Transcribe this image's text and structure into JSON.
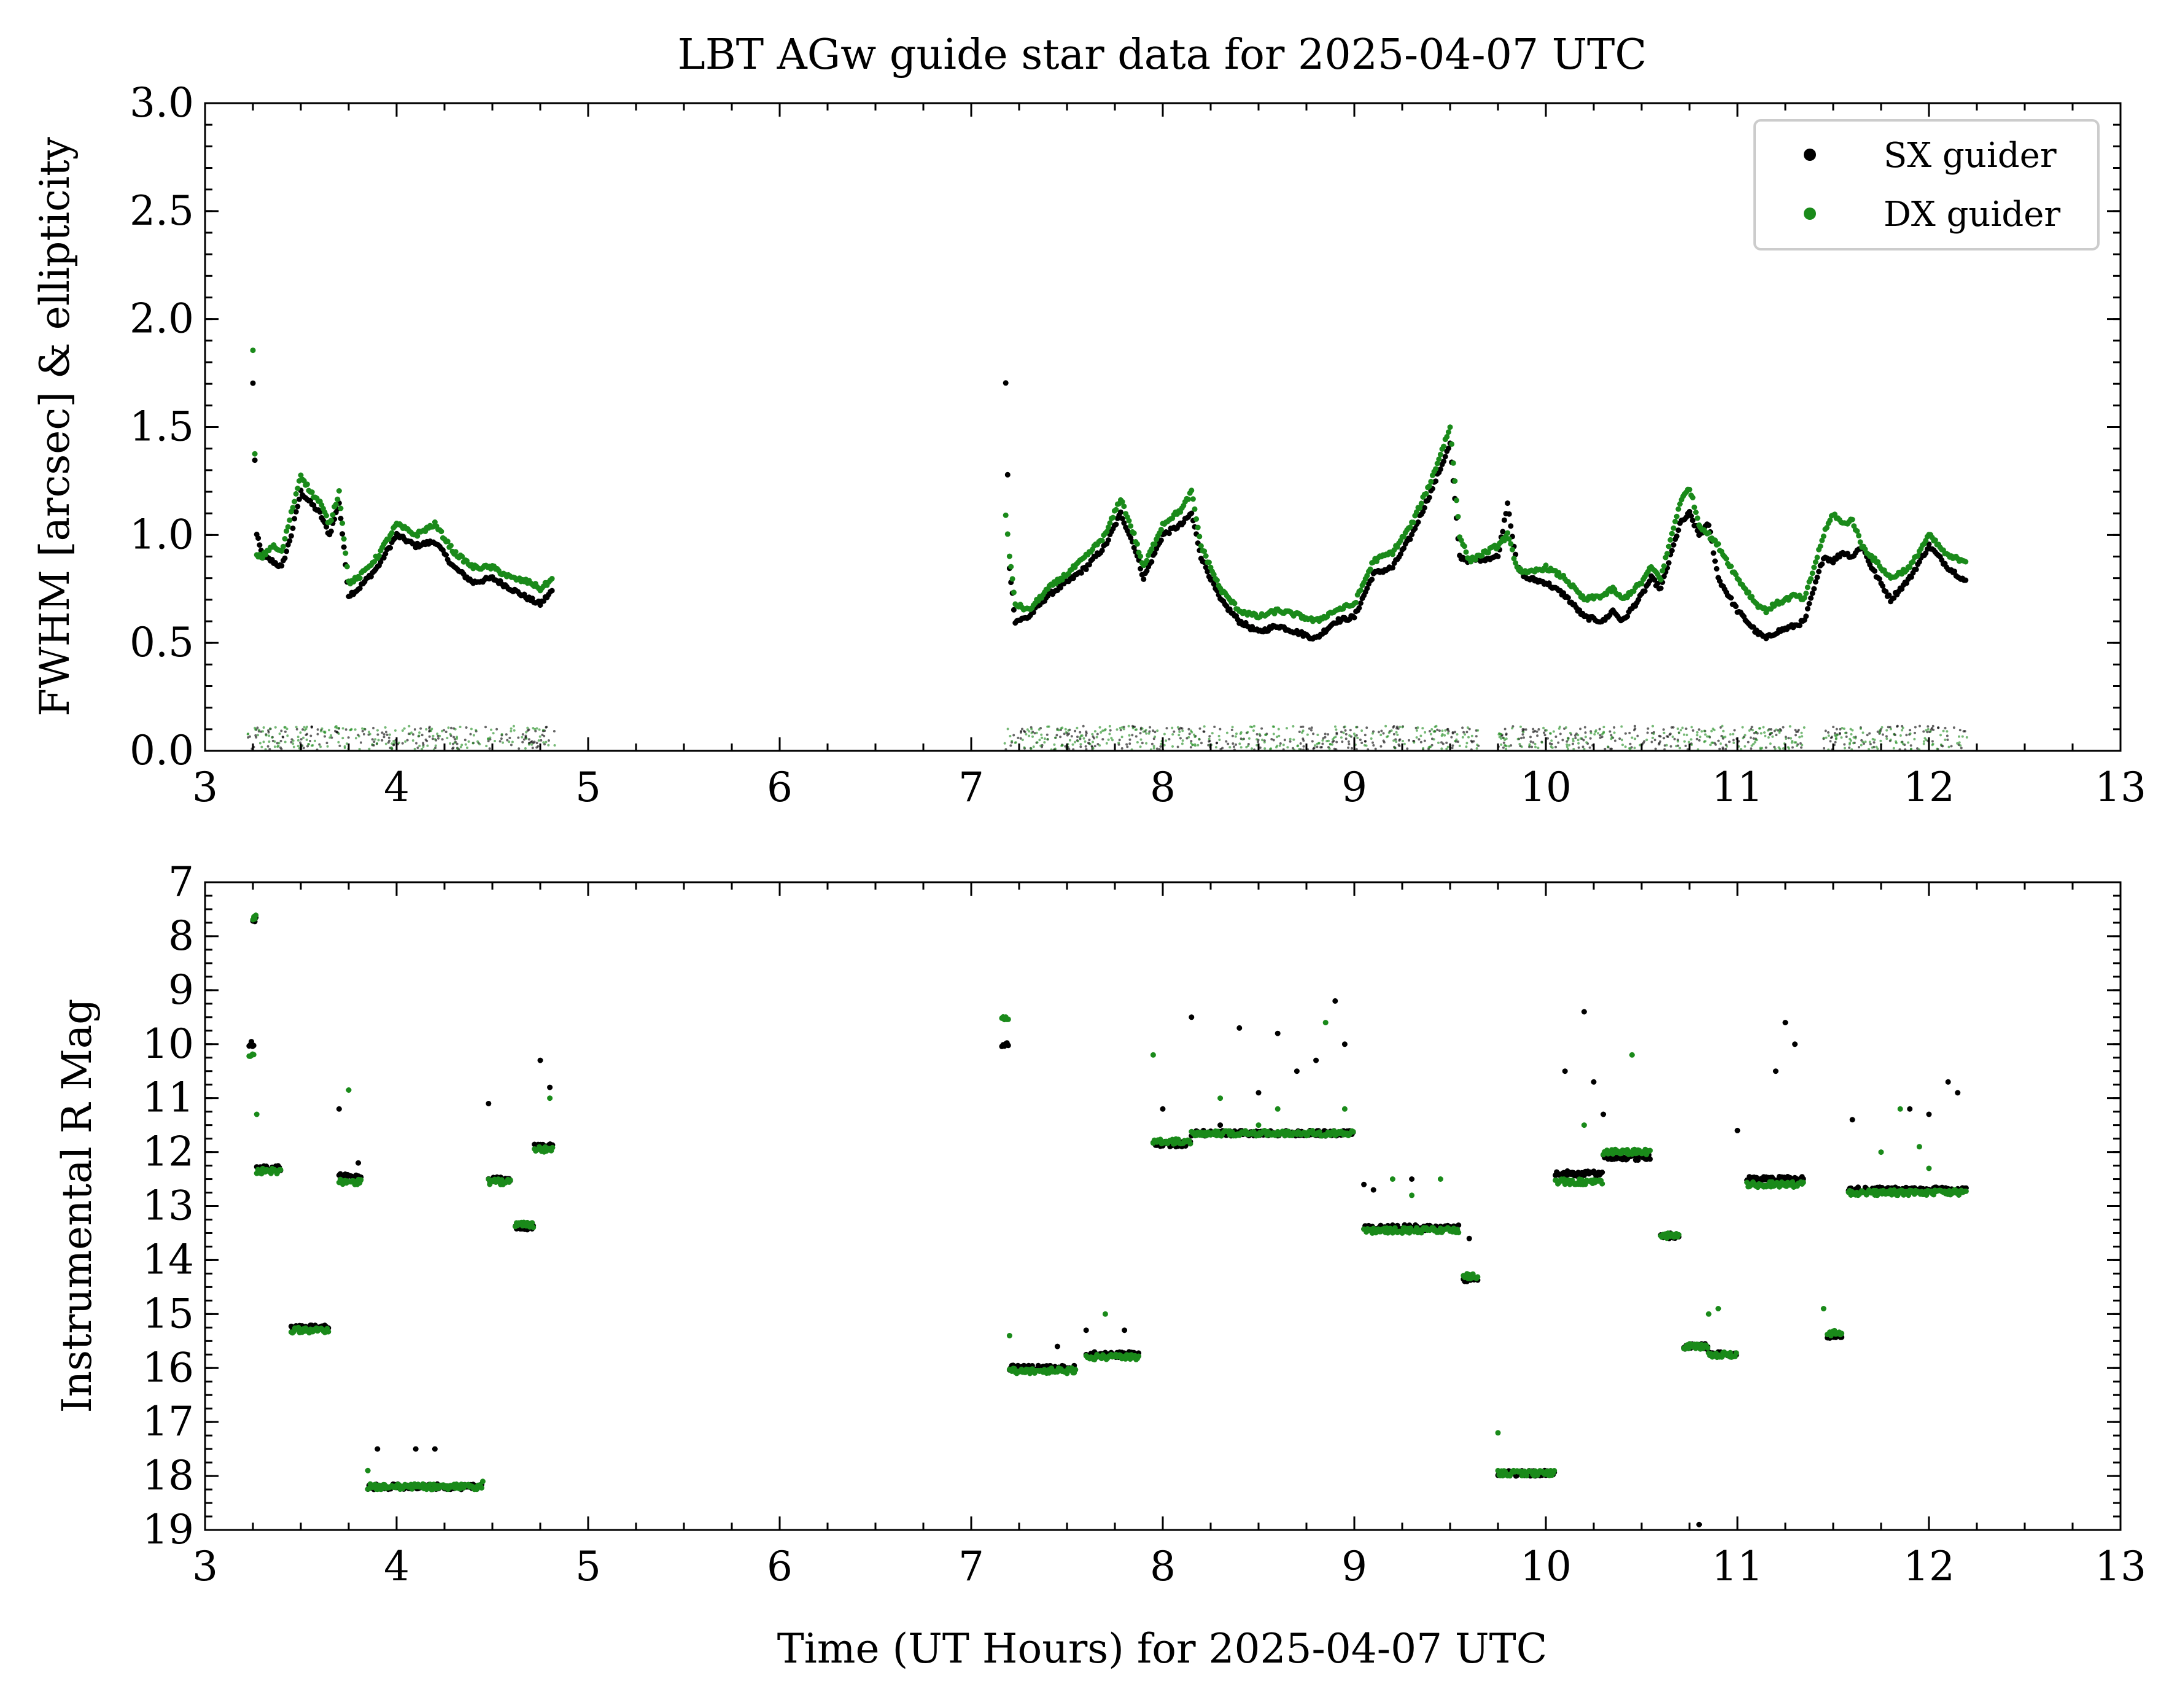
{
  "figure_title": "LBT AGw guide star data for 2025-04-07 UTC",
  "xlabel": "Time (UT Hours) for 2025-04-07 UTC",
  "colors": {
    "sx": "#000000",
    "dx": "#1a8a1a",
    "axis": "#000000",
    "background": "#ffffff"
  },
  "legend": {
    "sx_label": "SX guider",
    "dx_label": "DX guider",
    "placement": "top-right"
  },
  "top_xticks": [
    "3",
    "4",
    "5",
    "6",
    "7",
    "8",
    "9",
    "10",
    "11",
    "12",
    "13"
  ],
  "top_yticks": [
    "0.0",
    "0.5",
    "1.0",
    "1.5",
    "2.0",
    "2.5",
    "3.0"
  ],
  "bottom_xticks": [
    "3",
    "4",
    "5",
    "6",
    "7",
    "8",
    "9",
    "10",
    "11",
    "12",
    "13"
  ],
  "bottom_yticks": [
    "7",
    "8",
    "9",
    "10",
    "11",
    "12",
    "13",
    "14",
    "15",
    "16",
    "17",
    "18",
    "19"
  ],
  "chart_data": [
    {
      "type": "scatter",
      "title": "LBT AGw guide star data for 2025-04-07 UTC",
      "xlabel": "",
      "ylabel": "FWHM [arcsec] & ellipticity",
      "xlim": [
        3,
        13
      ],
      "ylim": [
        0,
        3
      ],
      "grid": false,
      "legend_placement": "top-right",
      "series": [
        {
          "name": "SX guider",
          "x": [
            3.25,
            3.27,
            3.3,
            3.35,
            3.4,
            3.45,
            3.5,
            3.55,
            3.6,
            3.65,
            3.7,
            3.75,
            3.8,
            3.9,
            4.0,
            4.1,
            4.2,
            4.3,
            4.4,
            4.5,
            4.6,
            4.7,
            4.75,
            4.82,
            7.18,
            7.2,
            7.23,
            7.3,
            7.4,
            7.5,
            7.6,
            7.7,
            7.78,
            7.85,
            7.9,
            8.0,
            8.1,
            8.15,
            8.2,
            8.3,
            8.4,
            8.5,
            8.6,
            8.7,
            8.8,
            8.9,
            9.0,
            9.1,
            9.2,
            9.3,
            9.4,
            9.5,
            9.55,
            9.6,
            9.75,
            9.8,
            9.85,
            9.9,
            10.0,
            10.1,
            10.2,
            10.3,
            10.35,
            10.4,
            10.5,
            10.55,
            10.6,
            10.7,
            10.75,
            10.8,
            10.85,
            10.9,
            11.0,
            11.1,
            11.15,
            11.2,
            11.3,
            11.35,
            11.45,
            11.5,
            11.55,
            11.6,
            11.65,
            11.7,
            11.8,
            11.9,
            12.0,
            12.1,
            12.2
          ],
          "y": [
            1.7,
            1.0,
            0.9,
            0.88,
            0.85,
            1.0,
            1.2,
            1.15,
            1.1,
            1.0,
            1.15,
            0.72,
            0.75,
            0.85,
            1.0,
            0.95,
            0.97,
            0.85,
            0.78,
            0.8,
            0.75,
            0.7,
            0.68,
            0.75,
            1.7,
            0.85,
            0.6,
            0.62,
            0.72,
            0.78,
            0.85,
            0.95,
            1.1,
            0.95,
            0.8,
            1.0,
            1.05,
            1.1,
            0.9,
            0.7,
            0.6,
            0.55,
            0.58,
            0.55,
            0.52,
            0.6,
            0.62,
            0.82,
            0.85,
            1.0,
            1.2,
            1.42,
            0.9,
            0.88,
            0.9,
            1.15,
            0.85,
            0.8,
            0.78,
            0.72,
            0.62,
            0.6,
            0.65,
            0.6,
            0.72,
            0.8,
            0.75,
            1.05,
            1.1,
            1.0,
            1.05,
            0.8,
            0.65,
            0.55,
            0.52,
            0.55,
            0.58,
            0.6,
            0.9,
            0.88,
            0.92,
            0.9,
            0.95,
            0.85,
            0.7,
            0.8,
            0.95,
            0.85,
            0.78
          ],
          "note_y_secondary": [
            0.02,
            0.05,
            0.03,
            0.04,
            0.05,
            0.03,
            0.04,
            0.05,
            0.04,
            0.05,
            0.04,
            0.03,
            0.05,
            0.04,
            0.05,
            0.04,
            0.03,
            0.05,
            0.04,
            0.03
          ]
        },
        {
          "name": "DX guider",
          "x": [
            3.25,
            3.27,
            3.3,
            3.35,
            3.4,
            3.45,
            3.5,
            3.55,
            3.6,
            3.65,
            3.7,
            3.75,
            3.8,
            3.9,
            4.0,
            4.1,
            4.2,
            4.3,
            4.4,
            4.5,
            4.6,
            4.7,
            4.75,
            4.82,
            7.18,
            7.2,
            7.23,
            7.3,
            7.4,
            7.5,
            7.6,
            7.7,
            7.78,
            7.85,
            7.9,
            8.0,
            8.1,
            8.15,
            8.2,
            8.3,
            8.4,
            8.5,
            8.6,
            8.7,
            8.8,
            8.9,
            9.0,
            9.1,
            9.2,
            9.3,
            9.4,
            9.5,
            9.55,
            9.6,
            9.75,
            9.8,
            9.85,
            9.9,
            10.0,
            10.1,
            10.2,
            10.3,
            10.35,
            10.4,
            10.5,
            10.55,
            10.6,
            10.7,
            10.75,
            10.8,
            10.85,
            10.9,
            11.0,
            11.1,
            11.15,
            11.2,
            11.3,
            11.35,
            11.45,
            11.5,
            11.55,
            11.6,
            11.65,
            11.7,
            11.8,
            11.9,
            12.0,
            12.1,
            12.2
          ],
          "y": [
            1.85,
            0.9,
            0.9,
            0.95,
            0.92,
            1.1,
            1.28,
            1.2,
            1.15,
            1.05,
            1.2,
            0.78,
            0.8,
            0.9,
            1.05,
            1.0,
            1.05,
            0.92,
            0.85,
            0.85,
            0.8,
            0.78,
            0.75,
            0.8,
            1.1,
            0.9,
            0.68,
            0.65,
            0.75,
            0.82,
            0.9,
            1.0,
            1.17,
            1.0,
            0.85,
            1.05,
            1.12,
            1.2,
            0.95,
            0.75,
            0.65,
            0.62,
            0.65,
            0.63,
            0.6,
            0.65,
            0.68,
            0.88,
            0.92,
            1.05,
            1.25,
            1.5,
            1.0,
            0.88,
            0.95,
            1.0,
            0.85,
            0.82,
            0.85,
            0.8,
            0.7,
            0.72,
            0.75,
            0.7,
            0.78,
            0.85,
            0.8,
            1.15,
            1.22,
            1.05,
            1.0,
            0.95,
            0.8,
            0.68,
            0.65,
            0.68,
            0.72,
            0.7,
            1.0,
            1.1,
            1.05,
            1.07,
            0.95,
            0.9,
            0.8,
            0.85,
            1.0,
            0.9,
            0.88
          ]
        }
      ]
    },
    {
      "type": "scatter",
      "title": "",
      "xlabel": "Time (UT Hours) for 2025-04-07 UTC",
      "ylabel": "Instrumental R Mag",
      "xlim": [
        3,
        13
      ],
      "ylim": [
        19,
        7
      ],
      "y_inverted": true,
      "grid": false,
      "series": [
        {
          "name": "SX guider",
          "segments": [
            {
              "x0": 3.23,
              "x1": 3.26,
              "y": 10.0
            },
            {
              "x0": 3.25,
              "x1": 3.27,
              "y": 7.7
            },
            {
              "x0": 3.27,
              "x1": 3.4,
              "y": 12.3
            },
            {
              "x0": 3.45,
              "x1": 3.65,
              "y": 15.25
            },
            {
              "x0": 3.7,
              "x1": 3.82,
              "y": 12.45
            },
            {
              "x0": 3.85,
              "x1": 4.45,
              "y": 18.2
            },
            {
              "x0": 4.48,
              "x1": 4.6,
              "y": 12.5
            },
            {
              "x0": 4.62,
              "x1": 4.72,
              "y": 13.4
            },
            {
              "x0": 4.72,
              "x1": 4.82,
              "y": 11.9
            },
            {
              "x0": 7.16,
              "x1": 7.2,
              "y": 10.0
            },
            {
              "x0": 7.2,
              "x1": 7.55,
              "y": 16.0
            },
            {
              "x0": 7.6,
              "x1": 7.88,
              "y": 15.75
            },
            {
              "x0": 7.95,
              "x1": 8.15,
              "y": 11.85
            },
            {
              "x0": 8.15,
              "x1": 9.0,
              "y": 11.65
            },
            {
              "x0": 9.05,
              "x1": 9.55,
              "y": 13.4
            },
            {
              "x0": 9.57,
              "x1": 9.65,
              "y": 14.35
            },
            {
              "x0": 9.75,
              "x1": 10.05,
              "y": 17.95
            },
            {
              "x0": 10.05,
              "x1": 10.3,
              "y": 12.4
            },
            {
              "x0": 10.3,
              "x1": 10.55,
              "y": 12.1
            },
            {
              "x0": 10.6,
              "x1": 10.7,
              "y": 13.55
            },
            {
              "x0": 10.72,
              "x1": 10.85,
              "y": 15.6
            },
            {
              "x0": 10.85,
              "x1": 11.0,
              "y": 15.75
            },
            {
              "x0": 11.05,
              "x1": 11.35,
              "y": 12.5
            },
            {
              "x0": 11.47,
              "x1": 11.55,
              "y": 15.4
            },
            {
              "x0": 11.58,
              "x1": 12.2,
              "y": 12.7
            }
          ],
          "outliers_x": [
            3.7,
            3.8,
            3.9,
            4.1,
            4.2,
            4.48,
            4.75,
            4.8,
            7.45,
            7.6,
            7.8,
            8.0,
            8.15,
            8.3,
            8.4,
            8.5,
            8.6,
            8.7,
            8.8,
            8.9,
            8.95,
            9.05,
            9.1,
            9.3,
            9.6,
            10.1,
            10.2,
            10.25,
            10.3,
            10.8,
            11.0,
            11.2,
            11.25,
            11.3,
            11.6,
            11.9,
            12.0,
            12.1,
            12.15
          ],
          "outliers_y": [
            11.2,
            12.2,
            17.5,
            17.5,
            17.5,
            11.1,
            10.3,
            10.8,
            15.6,
            15.3,
            15.3,
            11.2,
            9.5,
            11.5,
            9.7,
            10.9,
            9.8,
            10.5,
            10.3,
            9.2,
            10.0,
            12.6,
            12.7,
            12.5,
            13.6,
            10.5,
            9.4,
            10.7,
            11.3,
            18.9,
            11.6,
            10.5,
            9.6,
            10.0,
            11.4,
            11.2,
            11.3,
            10.7,
            10.9
          ]
        },
        {
          "name": "DX guider",
          "segments": [
            {
              "x0": 3.23,
              "x1": 3.26,
              "y": 10.2
            },
            {
              "x0": 3.25,
              "x1": 3.27,
              "y": 7.65
            },
            {
              "x0": 3.27,
              "x1": 3.4,
              "y": 12.35
            },
            {
              "x0": 3.45,
              "x1": 3.65,
              "y": 15.3
            },
            {
              "x0": 3.7,
              "x1": 3.82,
              "y": 12.55
            },
            {
              "x0": 3.85,
              "x1": 4.45,
              "y": 18.2
            },
            {
              "x0": 4.48,
              "x1": 4.6,
              "y": 12.55
            },
            {
              "x0": 4.62,
              "x1": 4.72,
              "y": 13.35
            },
            {
              "x0": 4.72,
              "x1": 4.82,
              "y": 11.95
            },
            {
              "x0": 7.16,
              "x1": 7.2,
              "y": 9.5
            },
            {
              "x0": 7.2,
              "x1": 7.55,
              "y": 16.05
            },
            {
              "x0": 7.6,
              "x1": 7.88,
              "y": 15.8
            },
            {
              "x0": 7.95,
              "x1": 8.15,
              "y": 11.8
            },
            {
              "x0": 8.15,
              "x1": 9.0,
              "y": 11.65
            },
            {
              "x0": 9.05,
              "x1": 9.55,
              "y": 13.45
            },
            {
              "x0": 9.57,
              "x1": 9.65,
              "y": 14.3
            },
            {
              "x0": 9.75,
              "x1": 10.05,
              "y": 17.95
            },
            {
              "x0": 10.05,
              "x1": 10.3,
              "y": 12.55
            },
            {
              "x0": 10.3,
              "x1": 10.55,
              "y": 12.0
            },
            {
              "x0": 10.6,
              "x1": 10.7,
              "y": 13.55
            },
            {
              "x0": 10.72,
              "x1": 10.85,
              "y": 15.6
            },
            {
              "x0": 10.85,
              "x1": 11.0,
              "y": 15.75
            },
            {
              "x0": 11.05,
              "x1": 11.35,
              "y": 12.6
            },
            {
              "x0": 11.47,
              "x1": 11.55,
              "y": 15.35
            },
            {
              "x0": 11.58,
              "x1": 12.2,
              "y": 12.75
            }
          ],
          "outliers_x": [
            3.27,
            3.75,
            3.85,
            4.45,
            4.8,
            7.2,
            7.7,
            7.95,
            8.3,
            8.5,
            8.6,
            8.85,
            8.95,
            9.2,
            9.3,
            9.45,
            9.75,
            10.2,
            10.45,
            10.85,
            10.9,
            11.45,
            11.75,
            11.85,
            11.95,
            12.0
          ],
          "outliers_y": [
            11.3,
            10.85,
            17.9,
            18.1,
            11.0,
            15.4,
            15.0,
            10.2,
            11.0,
            11.5,
            11.2,
            9.6,
            11.2,
            12.5,
            12.8,
            12.5,
            17.2,
            11.5,
            10.2,
            15.0,
            14.9,
            14.9,
            12.0,
            11.2,
            11.9,
            12.3
          ]
        }
      ]
    }
  ]
}
